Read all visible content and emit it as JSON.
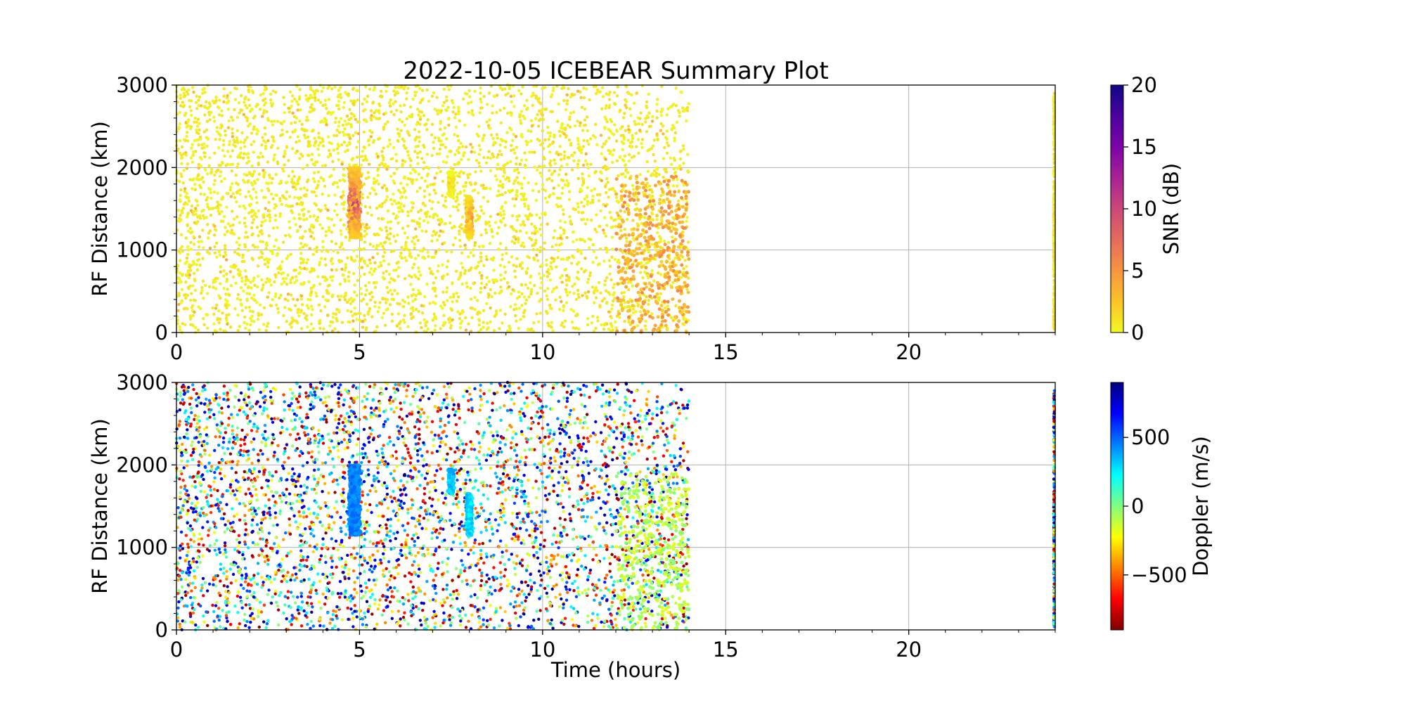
{
  "chart_data": {
    "type": "scatter",
    "title": "2022-10-05 ICEBEAR Summary Plot",
    "grid": true,
    "panels": [
      {
        "name": "snr-panel",
        "ylabel": "RF Distance (km)",
        "xlabel": "",
        "xlim": [
          0,
          24
        ],
        "ylim": [
          0,
          3000
        ],
        "xticks": [
          "0",
          "5",
          "10",
          "15",
          "20"
        ],
        "xtick_values": [
          0,
          5,
          10,
          15,
          20
        ],
        "yticks": [
          "0",
          "1000",
          "2000",
          "3000"
        ],
        "ytick_values": [
          0,
          1000,
          2000,
          3000
        ],
        "color_by": "snr",
        "colorbar": {
          "label": "SNR (dB)",
          "range": [
            0,
            20
          ],
          "ticks": [
            "0",
            "5",
            "10",
            "15",
            "20"
          ],
          "tick_values": [
            0,
            5,
            10,
            15,
            20
          ],
          "colormap": "plasma_r",
          "stops": [
            "#f0f921",
            "#fdc328",
            "#f89441",
            "#e56b5d",
            "#cc4778",
            "#a82296",
            "#7e03a8",
            "#4c02a1",
            "#0d0887"
          ]
        }
      },
      {
        "name": "doppler-panel",
        "ylabel": "RF Distance (km)",
        "xlabel": "Time (hours)",
        "xlim": [
          0,
          24
        ],
        "ylim": [
          0,
          3000
        ],
        "xticks": [
          "0",
          "5",
          "10",
          "15",
          "20"
        ],
        "xtick_values": [
          0,
          5,
          10,
          15,
          20
        ],
        "yticks": [
          "0",
          "1000",
          "2000",
          "3000"
        ],
        "ytick_values": [
          0,
          1000,
          2000,
          3000
        ],
        "color_by": "doppler",
        "colorbar": {
          "label": "Doppler (m/s)",
          "range": [
            -900,
            900
          ],
          "ticks": [
            "−500",
            "0",
            "500"
          ],
          "tick_values": [
            -500,
            0,
            500
          ],
          "colormap": "jet_r",
          "stops": [
            "#800000",
            "#ff0000",
            "#ff8000",
            "#ffff00",
            "#80ff80",
            "#00ffff",
            "#0080ff",
            "#0000ff",
            "#000080"
          ]
        }
      }
    ],
    "data_summary": {
      "background_time_range": [
        0,
        14
      ],
      "background_range_km": [
        0,
        3000
      ],
      "tail_time_range": [
        12,
        14
      ],
      "tail_range_km": [
        0,
        1900
      ],
      "tail_snr_db": [
        2,
        6
      ],
      "tail_doppler_ms": [
        -200,
        0
      ],
      "end_of_day_time": 23.98,
      "clusters": [
        {
          "time": 4.8,
          "range_km": [
            1150,
            2000
          ],
          "snr_db": [
            2,
            12
          ],
          "doppler_ms": [
            380,
            520
          ]
        },
        {
          "time": 8.0,
          "range_km": [
            1150,
            1650
          ],
          "snr_db": [
            1,
            7
          ],
          "doppler_ms": [
            200,
            380
          ]
        },
        {
          "time": 7.5,
          "range_km": [
            1650,
            1950
          ],
          "snr_db": [
            0,
            3
          ],
          "doppler_ms": [
            250,
            420
          ]
        }
      ]
    }
  }
}
